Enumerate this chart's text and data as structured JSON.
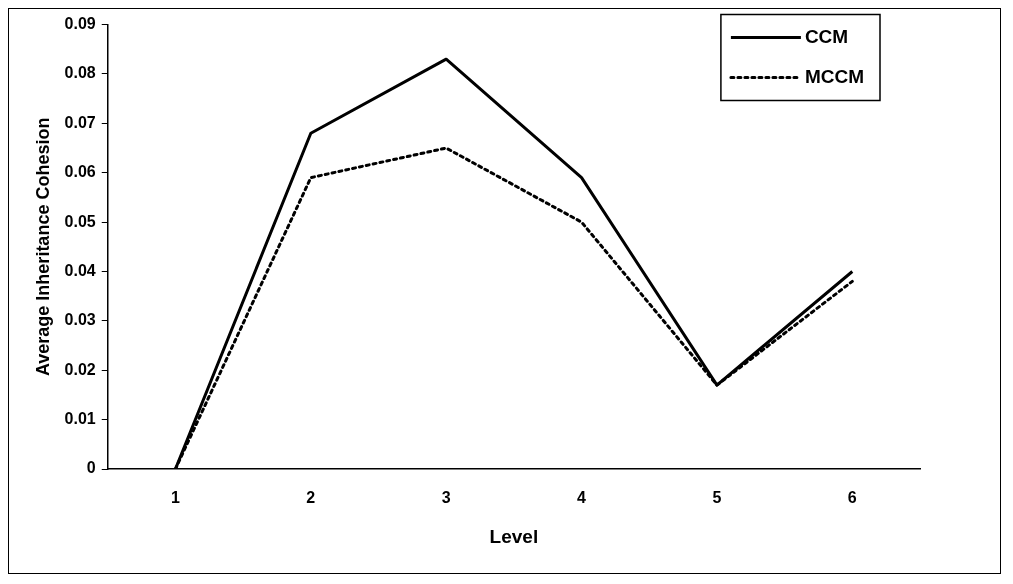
{
  "chart_data": {
    "type": "line",
    "xlabel": "Level",
    "ylabel": "Average Inheritance Cohesion",
    "categories": [
      "1",
      "2",
      "3",
      "4",
      "5",
      "6"
    ],
    "series": [
      {
        "name": "CCM",
        "color": "#000000",
        "line_style": "solid",
        "values": [
          0,
          0.068,
          0.083,
          0.059,
          0.017,
          0.04
        ]
      },
      {
        "name": "MCCM",
        "color": "#000000",
        "line_style": "dotted",
        "values": [
          0,
          0.059,
          0.065,
          0.05,
          0.017,
          0.038
        ]
      }
    ],
    "ylim": [
      0,
      0.09
    ],
    "yticks": [
      0,
      0.01,
      0.02,
      0.03,
      0.04,
      0.05,
      0.06,
      0.07,
      0.08,
      0.09
    ],
    "grid": false,
    "legend": "top right",
    "marker": "none"
  }
}
